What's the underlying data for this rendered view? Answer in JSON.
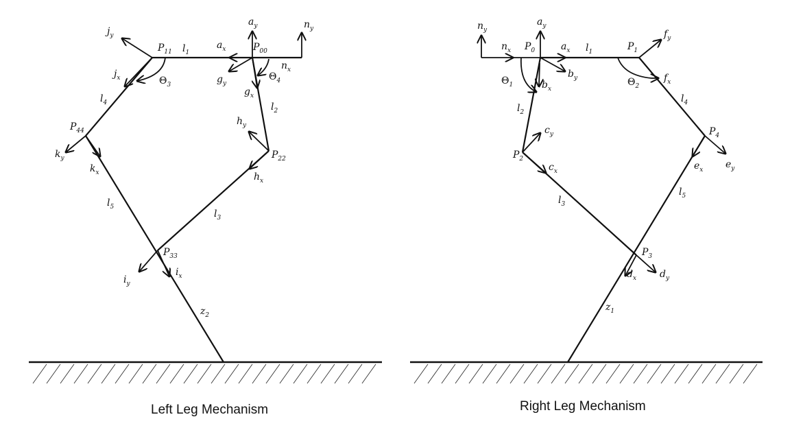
{
  "left": {
    "caption": "Left Leg Mechanism",
    "labels": {
      "j_y": [
        "j",
        "y"
      ],
      "P_11": [
        "P",
        "11"
      ],
      "l_1": [
        "l",
        "1"
      ],
      "a_x": [
        "a",
        "x"
      ],
      "P_00": [
        "P",
        "00"
      ],
      "a_y": [
        "a",
        "y"
      ],
      "n_y": [
        "n",
        "y"
      ],
      "n_x": [
        "n",
        "x"
      ],
      "j_x": [
        "j",
        "x"
      ],
      "Theta_3": [
        "Θ",
        "3"
      ],
      "g_y": [
        "g",
        "y"
      ],
      "Theta_4": [
        "Θ",
        "4"
      ],
      "g_x": [
        "g",
        "x"
      ],
      "l_4": [
        "l",
        "4"
      ],
      "l_2": [
        "l",
        "2"
      ],
      "P_44": [
        "P",
        "44"
      ],
      "h_y": [
        "h",
        "y"
      ],
      "P_22": [
        "P",
        "22"
      ],
      "k_y": [
        "k",
        "y"
      ],
      "k_x": [
        "k",
        "x"
      ],
      "h_x": [
        "h",
        "x"
      ],
      "l_5": [
        "l",
        "5"
      ],
      "l_3": [
        "l",
        "3"
      ],
      "P_33": [
        "P",
        "33"
      ],
      "i_y": [
        "i",
        "y"
      ],
      "i_x": [
        "i",
        "x"
      ],
      "z_2": [
        "z",
        "2"
      ]
    }
  },
  "right": {
    "caption": "Right Leg Mechanism",
    "labels": {
      "n_y": [
        "n",
        "y"
      ],
      "a_y": [
        "a",
        "y"
      ],
      "n_x": [
        "n",
        "x"
      ],
      "P_0": [
        "P",
        "0"
      ],
      "a_x": [
        "a",
        "x"
      ],
      "l_1": [
        "l",
        "1"
      ],
      "P_1": [
        "P",
        "1"
      ],
      "f_y": [
        "f",
        "y"
      ],
      "Theta_1": [
        "Θ",
        "1"
      ],
      "b_x": [
        "b",
        "x"
      ],
      "b_y": [
        "b",
        "y"
      ],
      "Theta_2": [
        "Θ",
        "2"
      ],
      "f_x": [
        "f",
        "x"
      ],
      "l_4": [
        "l",
        "4"
      ],
      "l_2": [
        "l",
        "2"
      ],
      "c_y": [
        "c",
        "y"
      ],
      "P_4": [
        "P",
        "4"
      ],
      "P_2": [
        "P",
        "2"
      ],
      "c_x": [
        "c",
        "x"
      ],
      "e_x": [
        "e",
        "x"
      ],
      "e_y": [
        "e",
        "y"
      ],
      "l_3": [
        "l",
        "3"
      ],
      "l_5": [
        "l",
        "5"
      ],
      "P_3": [
        "P",
        "3"
      ],
      "d_x": [
        "d",
        "x"
      ],
      "d_y": [
        "d",
        "y"
      ],
      "z_1": [
        "z",
        "1"
      ]
    }
  }
}
